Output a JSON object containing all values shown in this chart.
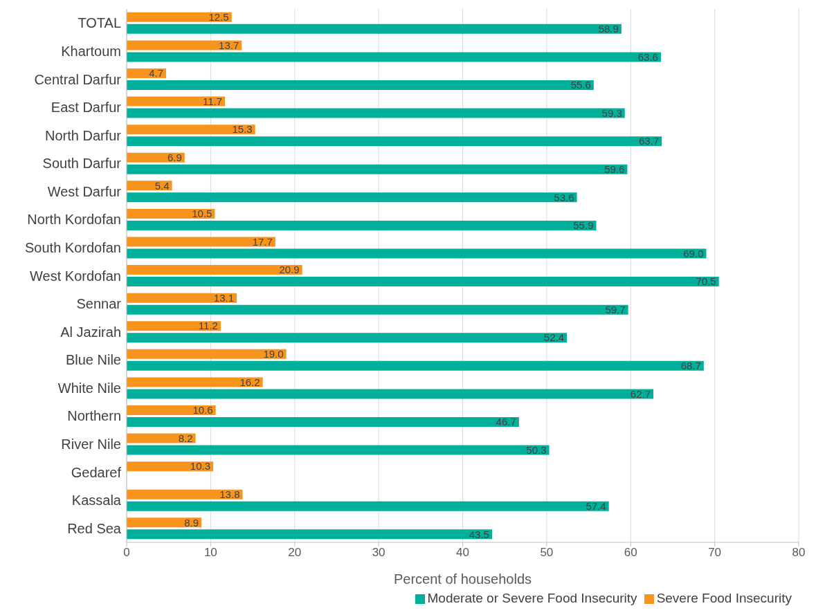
{
  "chart_data": {
    "type": "bar",
    "orientation": "horizontal",
    "xlabel": "Percent of households",
    "categories": [
      "TOTAL",
      "Khartoum",
      "Central Darfur",
      "East Darfur",
      "North Darfur",
      "South Darfur",
      "West Darfur",
      "North Kordofan",
      "South Kordofan",
      "West Kordofan",
      "Sennar",
      "Al Jazirah",
      "Blue Nile",
      "White Nile",
      "Northern",
      "River Nile",
      "Gedaref",
      "Kassala",
      "Red Sea"
    ],
    "series": [
      {
        "name": "Severe Food Insecurity",
        "color": "#f7941d",
        "values": [
          12.5,
          13.7,
          4.7,
          11.7,
          15.3,
          6.9,
          5.4,
          10.5,
          17.7,
          20.9,
          13.1,
          11.2,
          19.0,
          16.2,
          10.6,
          8.2,
          10.3,
          13.8,
          8.9
        ],
        "value_labels": [
          "12.5",
          "13.7",
          "4.7",
          "11.7",
          "15.3",
          "6.9",
          "5.4",
          "10.5",
          "17.7",
          "20.9",
          "13.1",
          "11.2",
          "19.0",
          "16.2",
          "10.6",
          "8.2",
          "10.3",
          "13.8",
          "8.9"
        ]
      },
      {
        "name": "Moderate or Severe Food Insecurity",
        "color": "#00b09b",
        "values": [
          58.9,
          63.6,
          55.6,
          59.3,
          63.7,
          59.6,
          53.6,
          55.9,
          69.0,
          70.5,
          59.7,
          52.4,
          68.7,
          62.7,
          46.7,
          50.3,
          null,
          57.4,
          43.5
        ],
        "value_labels": [
          "58.9",
          "63.6",
          "55.6",
          "59.3",
          "63.7",
          "59.6",
          "53.6",
          "55.9",
          "69.0",
          "70.5",
          "59.7",
          "52.4",
          "68.7",
          "62.7",
          "46.7",
          "50.3",
          null,
          "57.4",
          "43.5"
        ]
      }
    ],
    "xlim": [
      0,
      80
    ],
    "xticks": [
      0,
      10,
      20,
      30,
      40,
      50,
      60,
      70,
      80
    ],
    "grid": "x",
    "legend": "bottom right"
  }
}
